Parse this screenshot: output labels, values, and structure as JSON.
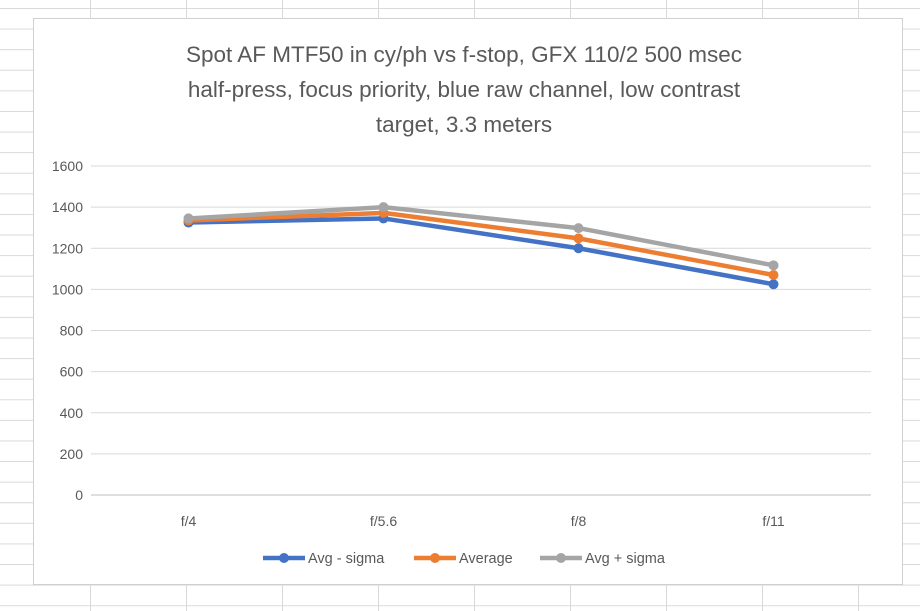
{
  "chart_data": {
    "type": "line",
    "title_lines": [
      "Spot AF MTF50 in cy/ph vs f-stop, GFX 110/2 500 msec",
      "half-press, focus priority, blue raw channel, low contrast",
      "target, 3.3 meters"
    ],
    "xlabel": "",
    "ylabel": "",
    "categories": [
      "f/4",
      "f/5.6",
      "f/8",
      "f/11"
    ],
    "ylim": [
      0,
      1600
    ],
    "yticks": [
      0,
      200,
      400,
      600,
      800,
      1000,
      1200,
      1400,
      1600
    ],
    "grid": "horizontal",
    "legend_position": "bottom",
    "series": [
      {
        "name": "Avg - sigma",
        "color": "#4472C4",
        "values": [
          1325,
          1345,
          1200,
          1025
        ]
      },
      {
        "name": "Average",
        "color": "#ED7D31",
        "values": [
          1335,
          1372,
          1248,
          1070
        ]
      },
      {
        "name": "Avg + sigma",
        "color": "#A5A5A5",
        "values": [
          1345,
          1400,
          1298,
          1117
        ]
      }
    ]
  }
}
